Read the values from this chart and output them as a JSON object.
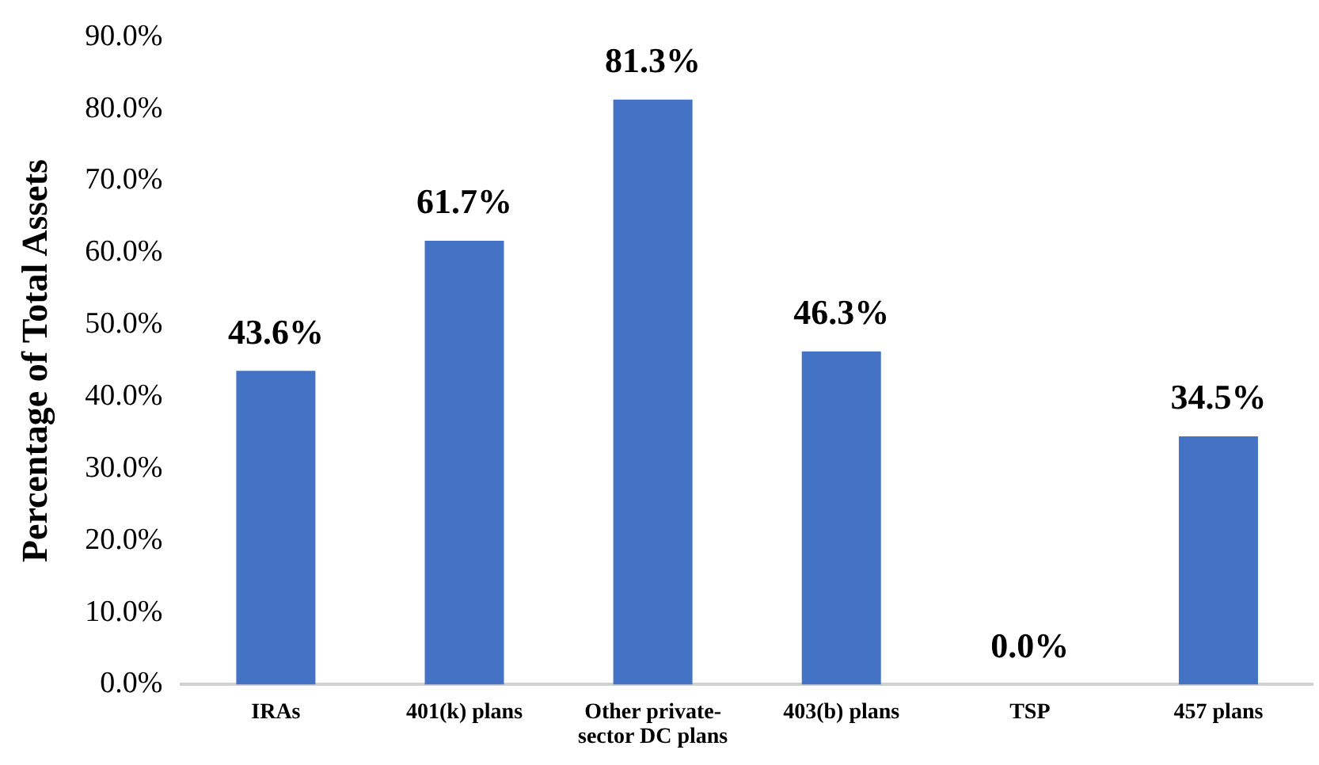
{
  "chart_data": {
    "type": "bar",
    "ylabel": "Percentage of Total Assets",
    "categories": [
      "IRAs",
      "401(k) plans",
      "Other private-sector DC plans",
      "403(b) plans",
      "TSP",
      "457 plans"
    ],
    "values": [
      43.6,
      61.7,
      81.3,
      46.3,
      0.0,
      34.5
    ],
    "color": "#4472c4",
    "ylim": [
      0,
      90
    ],
    "yticks": [
      {
        "value": 0,
        "label": "0.0%"
      },
      {
        "value": 10,
        "label": "10.0%"
      },
      {
        "value": 20,
        "label": "20.0%"
      },
      {
        "value": 30,
        "label": "30.0%"
      },
      {
        "value": 40,
        "label": "40.0%"
      },
      {
        "value": 50,
        "label": "50.0%"
      },
      {
        "value": 60,
        "label": "60.0%"
      },
      {
        "value": 70,
        "label": "70.0%"
      },
      {
        "value": 80,
        "label": "80.0%"
      },
      {
        "value": 90,
        "label": "90.0%"
      }
    ],
    "value_labels": [
      "43.6%",
      "61.7%",
      "81.3%",
      "46.3%",
      "0.0%",
      "34.5%"
    ],
    "grid": false,
    "legend": false
  }
}
